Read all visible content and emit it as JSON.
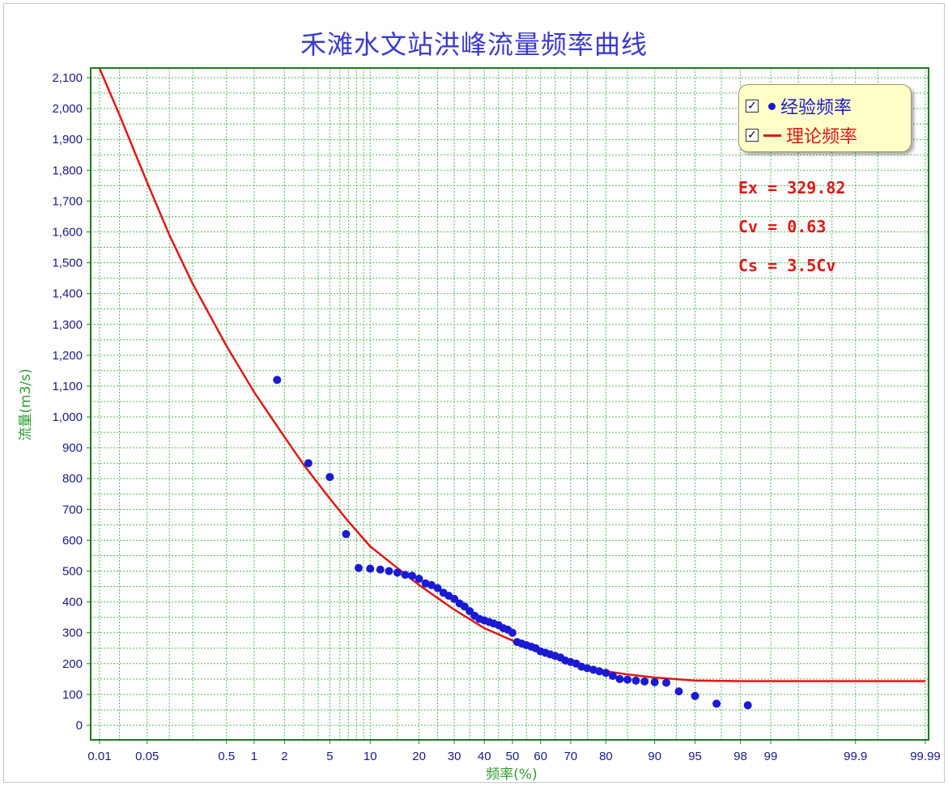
{
  "chart_data": {
    "type": "scatter",
    "title": "禾滩水文站洪峰流量频率曲线",
    "xlabel": "频率(%)",
    "ylabel": "流量(m3/s)",
    "x_scale": "probability",
    "x_ticks": [
      "0.01",
      "0.05",
      "0.5",
      "1",
      "2",
      "5",
      "10",
      "20",
      "30",
      "40",
      "50",
      "60",
      "70",
      "80",
      "90",
      "95",
      "98",
      "99",
      "99.9",
      "99.99"
    ],
    "y_ticks": [
      "0",
      "100",
      "200",
      "300",
      "400",
      "500",
      "600",
      "700",
      "800",
      "900",
      "1,000",
      "1,100",
      "1,200",
      "1,300",
      "1,400",
      "1,500",
      "1,600",
      "1,700",
      "1,800",
      "1,900",
      "2,000",
      "2,100"
    ],
    "ylim": [
      0,
      2100
    ],
    "grid": true,
    "legend_position": "top-right",
    "colors": {
      "empirical": "#1a1ad2",
      "theoretical": "#e01818",
      "grid": "#55bb55",
      "axis": "#1f7a1f"
    },
    "series": [
      {
        "name": "经验频率",
        "kind": "points",
        "x": [
          1.7,
          3.3,
          5.0,
          6.7,
          8.3,
          10.0,
          11.7,
          13.3,
          15.0,
          16.7,
          18.3,
          20.0,
          21.7,
          23.3,
          25.0,
          26.7,
          28.3,
          30.0,
          31.7,
          33.3,
          35.0,
          36.7,
          38.3,
          40.0,
          41.7,
          43.3,
          45.0,
          46.7,
          48.3,
          50.0,
          51.7,
          53.3,
          55.0,
          56.7,
          58.3,
          60.0,
          61.7,
          63.3,
          65.0,
          66.7,
          68.3,
          70.0,
          71.7,
          73.3,
          75.0,
          76.7,
          78.3,
          80.0,
          81.7,
          83.3,
          85.0,
          86.7,
          88.3,
          90.0,
          91.7,
          93.3,
          95.0,
          96.7,
          98.3
        ],
        "y": [
          1120,
          850,
          805,
          620,
          510,
          508,
          505,
          500,
          495,
          488,
          485,
          475,
          460,
          455,
          445,
          430,
          420,
          410,
          395,
          385,
          370,
          355,
          345,
          340,
          335,
          330,
          325,
          315,
          310,
          300,
          270,
          265,
          260,
          255,
          250,
          240,
          235,
          230,
          225,
          220,
          210,
          205,
          200,
          190,
          185,
          180,
          175,
          170,
          160,
          150,
          148,
          145,
          142,
          140,
          138,
          110,
          95,
          70,
          65
        ]
      },
      {
        "name": "理论频率",
        "kind": "line",
        "x": [
          0.01,
          0.02,
          0.05,
          0.1,
          0.2,
          0.5,
          1,
          2,
          3,
          5,
          7,
          10,
          15,
          20,
          30,
          40,
          50,
          60,
          70,
          80,
          85,
          90,
          95,
          98,
          99,
          99.5,
          99.9,
          99.99
        ],
        "y": [
          2130,
          1980,
          1760,
          1590,
          1430,
          1230,
          1080,
          935,
          845,
          735,
          660,
          580,
          510,
          455,
          375,
          315,
          275,
          240,
          205,
          175,
          165,
          155,
          145,
          143,
          143,
          143,
          143,
          143
        ]
      }
    ],
    "annotations": [
      "Ex = 329.82",
      "Cv = 0.63",
      "Cs = 3.5Cv"
    ]
  },
  "legend": {
    "items": [
      {
        "label": "经验频率",
        "checked": "✓"
      },
      {
        "label": "理论频率",
        "checked": "✓"
      }
    ]
  }
}
